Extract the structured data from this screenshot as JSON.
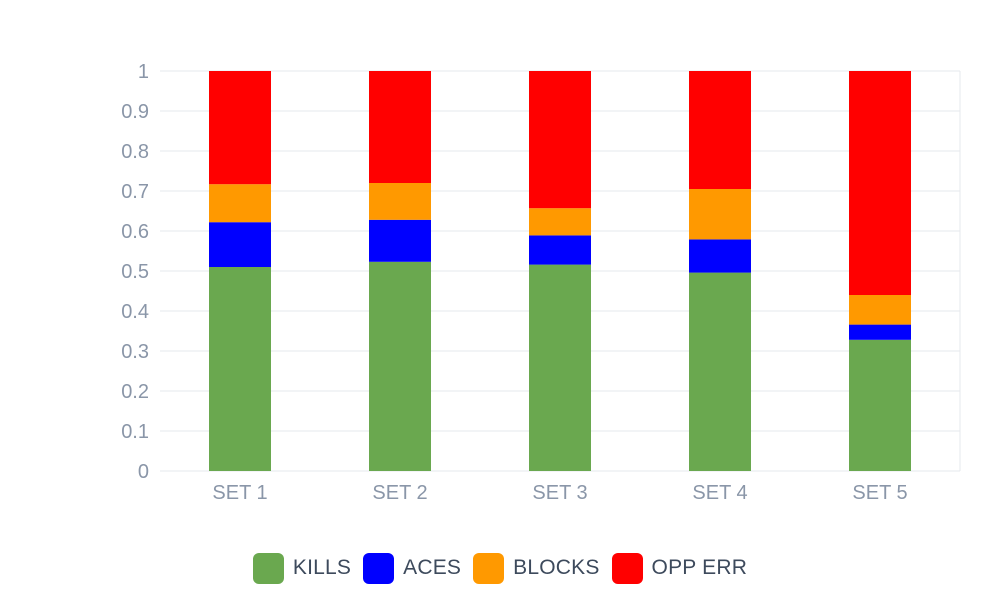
{
  "chart_data": {
    "type": "bar",
    "stacked": true,
    "title": "",
    "xlabel": "",
    "ylabel": "",
    "ylim": [
      0,
      1
    ],
    "yticks": [
      "0",
      "0.1",
      "0.2",
      "0.3",
      "0.4",
      "0.5",
      "0.6",
      "0.7",
      "0.8",
      "0.9",
      "1"
    ],
    "grid": true,
    "legend_position": "bottom",
    "categories": [
      "SET 1",
      "SET 2",
      "SET 3",
      "SET 4",
      "SET 5"
    ],
    "series": [
      {
        "name": "KILLS",
        "color": "#6aa84f",
        "values": [
          0.51,
          0.523,
          0.516,
          0.496,
          0.328
        ]
      },
      {
        "name": "ACES",
        "color": "#0000ff",
        "values": [
          0.112,
          0.105,
          0.073,
          0.083,
          0.038
        ]
      },
      {
        "name": "BLOCKS",
        "color": "#ff9900",
        "values": [
          0.095,
          0.092,
          0.068,
          0.126,
          0.074
        ]
      },
      {
        "name": "OPP ERR",
        "color": "#ff0000",
        "values": [
          0.283,
          0.28,
          0.343,
          0.295,
          0.56
        ]
      }
    ]
  }
}
